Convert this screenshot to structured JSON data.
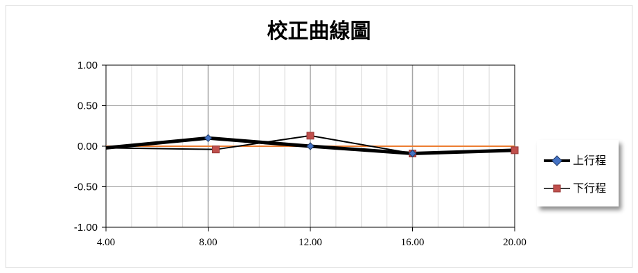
{
  "chart_data": {
    "type": "line",
    "title": "校正曲線圖",
    "x": [
      4,
      8,
      12,
      16,
      20
    ],
    "x_tick_labels": [
      "4.00",
      "8.00",
      "12.00",
      "16.00",
      "20.00"
    ],
    "y_tick_labels": [
      "1.00",
      "0.50",
      "0.00",
      "-0.50",
      "-1.00"
    ],
    "xlim": [
      4,
      20
    ],
    "ylim": [
      -1,
      1
    ],
    "grid": true,
    "legend_position": "right",
    "series": [
      {
        "name": "上行程",
        "x": [
          4,
          8,
          12,
          16,
          20
        ],
        "values": [
          -0.02,
          0.1,
          0.0,
          -0.09,
          -0.05
        ],
        "color": "#000000",
        "marker": "diamond",
        "marker_color": "#4472c4"
      },
      {
        "name": "下行程",
        "x": [
          4,
          8.3,
          12,
          16,
          20
        ],
        "values": [
          -0.02,
          -0.04,
          0.13,
          -0.09,
          -0.05
        ],
        "color": "#000000",
        "marker": "square",
        "marker_color": "#c0504d"
      }
    ],
    "reference_line": {
      "value": 0,
      "color": "#ed7d31"
    }
  }
}
